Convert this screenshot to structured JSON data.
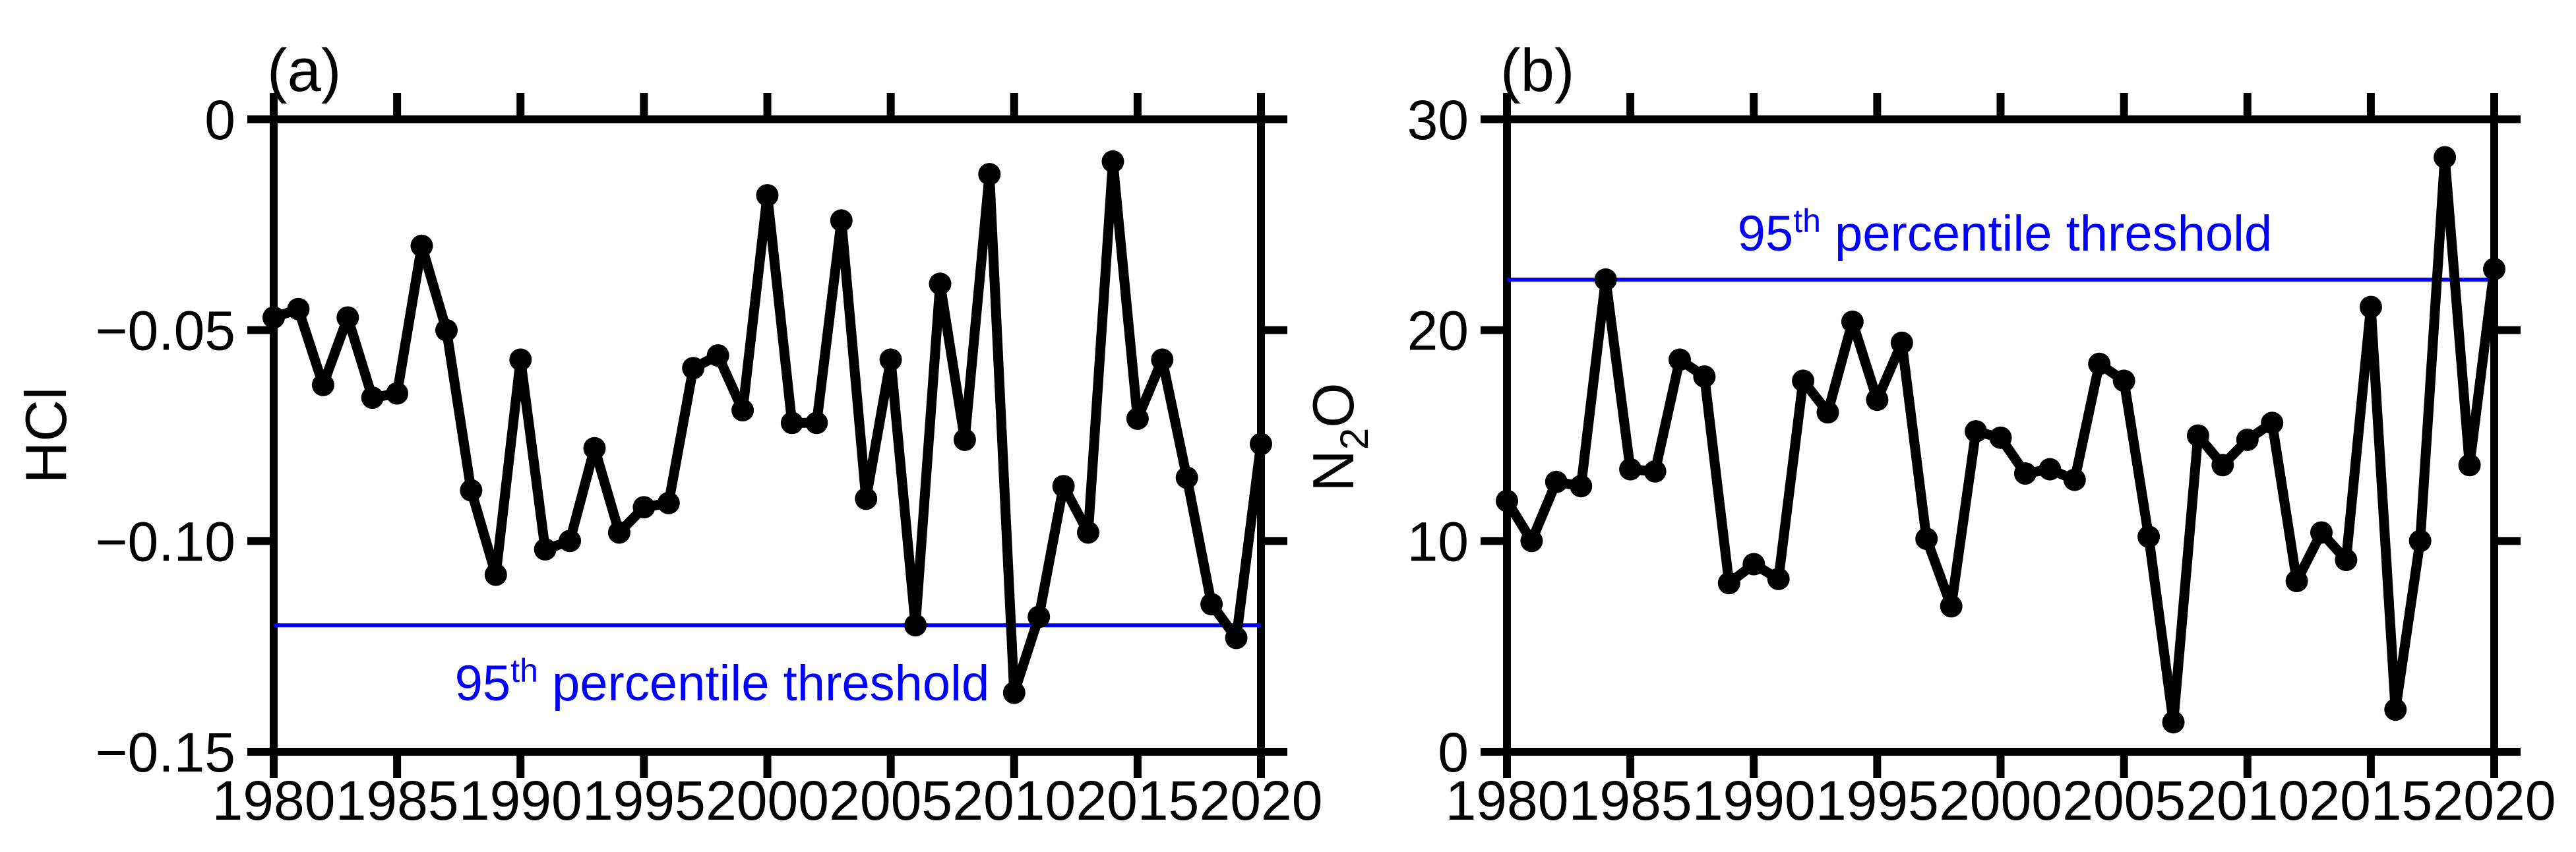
{
  "figure": {
    "background": "#ffffff",
    "series_color": "#000000",
    "threshold_color": "#0000ff"
  },
  "chart_data": [
    {
      "type": "line",
      "panel_label": "(a)",
      "ylabel_parts": {
        "base": "HCl",
        "sub": "",
        "rest": ""
      },
      "xlim": [
        1980,
        2020
      ],
      "ylim": [
        -0.15,
        0
      ],
      "xticks": [
        1980,
        1985,
        1990,
        1995,
        2000,
        2005,
        2010,
        2015,
        2020
      ],
      "xtick_labels": [
        "1980",
        "1985",
        "1990",
        "1995",
        "2000",
        "2005",
        "2010",
        "2015",
        "2020"
      ],
      "yticks": [
        0,
        -0.05,
        -0.1,
        -0.15
      ],
      "ytick_labels": [
        "0",
        "−0.05",
        "−0.10",
        "−0.15"
      ],
      "grid": false,
      "x": [
        1980,
        1981,
        1982,
        1983,
        1984,
        1985,
        1986,
        1987,
        1988,
        1989,
        1990,
        1991,
        1992,
        1993,
        1994,
        1995,
        1996,
        1997,
        1998,
        1999,
        2000,
        2001,
        2002,
        2003,
        2004,
        2005,
        2006,
        2007,
        2008,
        2009,
        2010,
        2011,
        2012,
        2013,
        2014,
        2015,
        2016,
        2017,
        2018,
        2019,
        2020
      ],
      "values": [
        -0.047,
        -0.045,
        -0.063,
        -0.047,
        -0.066,
        -0.065,
        -0.03,
        -0.05,
        -0.088,
        -0.108,
        -0.057,
        -0.102,
        -0.1,
        -0.078,
        -0.098,
        -0.092,
        -0.091,
        -0.059,
        -0.056,
        -0.069,
        -0.018,
        -0.072,
        -0.072,
        -0.024,
        -0.09,
        -0.057,
        -0.12,
        -0.039,
        -0.076,
        -0.013,
        -0.136,
        -0.118,
        -0.087,
        -0.098,
        -0.01,
        -0.071,
        -0.057,
        -0.085,
        -0.115,
        -0.123,
        -0.077
      ],
      "threshold": {
        "value": -0.12,
        "label_base": "95",
        "label_sup": "th",
        "label_rest": " percentile threshold",
        "label_position": "below-line"
      }
    },
    {
      "type": "line",
      "panel_label": "(b)",
      "ylabel_parts": {
        "base": "N",
        "sub": "2",
        "rest": "O"
      },
      "xlim": [
        1980,
        2020
      ],
      "ylim": [
        0,
        30
      ],
      "xticks": [
        1980,
        1985,
        1990,
        1995,
        2000,
        2005,
        2010,
        2015,
        2020
      ],
      "xtick_labels": [
        "1980",
        "1985",
        "1990",
        "1995",
        "2000",
        "2005",
        "2010",
        "2015",
        "2020"
      ],
      "yticks": [
        30,
        20,
        10,
        0
      ],
      "ytick_labels": [
        "30",
        "20",
        "10",
        "0"
      ],
      "grid": false,
      "x": [
        1980,
        1981,
        1982,
        1983,
        1984,
        1985,
        1986,
        1987,
        1988,
        1989,
        1990,
        1991,
        1992,
        1993,
        1994,
        1995,
        1996,
        1997,
        1998,
        1999,
        2000,
        2001,
        2002,
        2003,
        2004,
        2005,
        2006,
        2007,
        2008,
        2009,
        2010,
        2011,
        2012,
        2013,
        2014,
        2015,
        2016,
        2017,
        2018,
        2019,
        2020
      ],
      "values": [
        11.9,
        10.0,
        12.8,
        12.6,
        22.4,
        13.4,
        13.3,
        18.6,
        17.8,
        8.0,
        8.9,
        8.2,
        17.6,
        16.1,
        20.4,
        16.7,
        19.4,
        10.1,
        6.9,
        15.2,
        14.9,
        13.2,
        13.4,
        12.9,
        18.4,
        17.6,
        10.2,
        1.4,
        15.0,
        13.6,
        14.8,
        15.6,
        8.1,
        10.4,
        9.1,
        21.1,
        2.0,
        10.0,
        28.2,
        13.6,
        22.9
      ],
      "threshold": {
        "value": 22.4,
        "label_base": "95",
        "label_sup": "th",
        "label_rest": " percentile threshold",
        "label_position": "above-line"
      }
    }
  ]
}
